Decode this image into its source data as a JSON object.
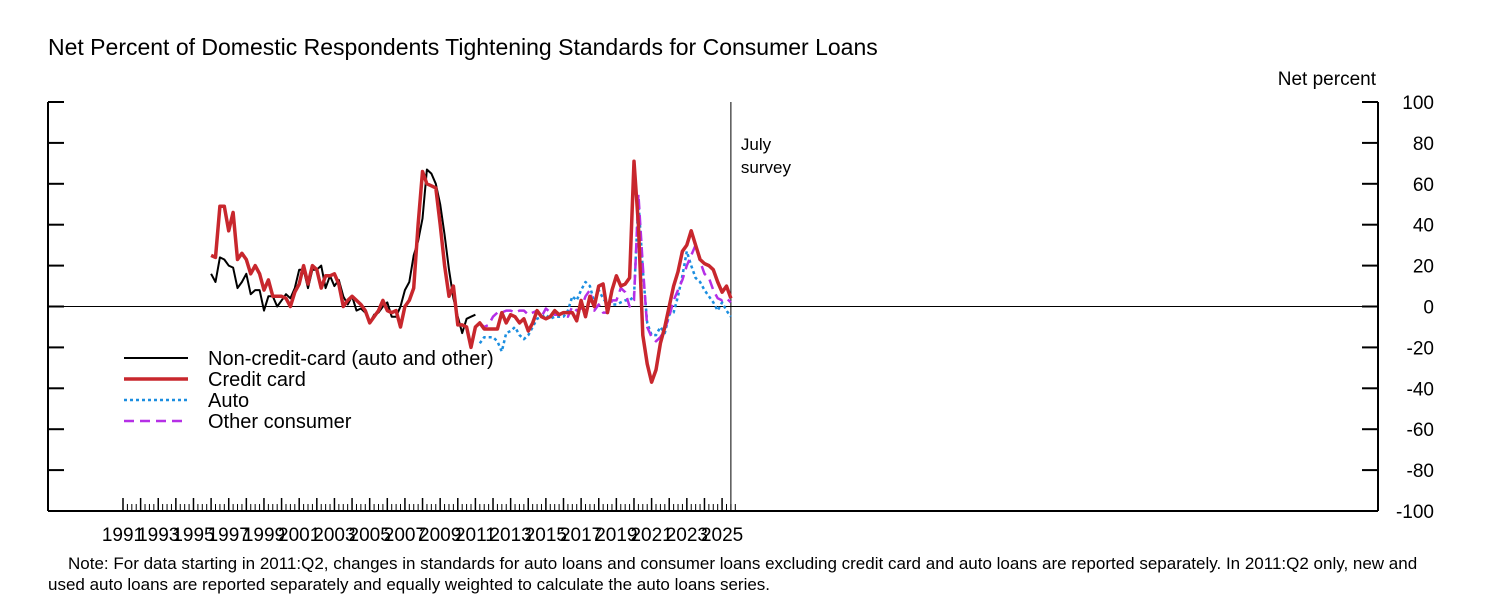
{
  "chart_data": {
    "type": "line",
    "title": "Net Percent of Domestic Respondents Tightening Standards for Consumer Loans",
    "ylabel": "Net percent",
    "xlabel": "",
    "xlim": [
      1989.5,
      2026.5
    ],
    "ylim": [
      -100,
      100
    ],
    "x_ticks": [
      "1991",
      "1993",
      "1995",
      "1997",
      "1999",
      "2001",
      "2003",
      "2005",
      "2007",
      "2009",
      "2011",
      "2013",
      "2015",
      "2017",
      "2019",
      "2021",
      "2023",
      "2025"
    ],
    "y_ticks": [
      "100",
      "80",
      "60",
      "40",
      "20",
      "0",
      "-20",
      "-40",
      "-60",
      "-80",
      "-100"
    ],
    "grid": false,
    "legend_position": "lower-left",
    "annotation": "July\nsurvey",
    "annotation_x": 2025.5,
    "series": [
      {
        "name": "Non-credit-card (auto and other)",
        "color": "#000000",
        "style": "solid",
        "x": [
          1996.0,
          1996.25,
          1996.5,
          1996.75,
          1997.0,
          1997.25,
          1997.5,
          1997.75,
          1998.0,
          1998.25,
          1998.5,
          1998.75,
          1999.0,
          1999.25,
          1999.5,
          1999.75,
          2000.0,
          2000.25,
          2000.5,
          2000.75,
          2001.0,
          2001.25,
          2001.5,
          2001.75,
          2002.0,
          2002.25,
          2002.5,
          2002.75,
          2003.0,
          2003.25,
          2003.5,
          2003.75,
          2004.0,
          2004.25,
          2004.5,
          2004.75,
          2005.0,
          2005.25,
          2005.5,
          2005.75,
          2006.0,
          2006.25,
          2006.5,
          2006.75,
          2007.0,
          2007.25,
          2007.5,
          2007.75,
          2008.0,
          2008.25,
          2008.5,
          2008.75,
          2009.0,
          2009.25,
          2009.5,
          2009.75,
          2010.0,
          2010.25,
          2010.5,
          2010.75,
          2011.0
        ],
        "y": [
          16,
          12,
          24,
          23,
          20,
          19,
          9,
          12,
          16,
          6,
          8,
          8,
          -2,
          5,
          5,
          0,
          3,
          6,
          4,
          9,
          18,
          18,
          9,
          18,
          18,
          20,
          9,
          15,
          10,
          13,
          5,
          1,
          5,
          -2,
          -1,
          -3,
          -8,
          -4,
          -3,
          0,
          2,
          -5,
          -5,
          0,
          8,
          12,
          25,
          32,
          43,
          67,
          65,
          60,
          50,
          35,
          18,
          4,
          -5,
          -13,
          -6,
          -5,
          -4
        ]
      },
      {
        "name": "Credit card",
        "color": "#c8272d",
        "style": "solid",
        "x": [
          1996.0,
          1996.25,
          1996.5,
          1996.75,
          1997.0,
          1997.25,
          1997.5,
          1997.75,
          1998.0,
          1998.25,
          1998.5,
          1998.75,
          1999.0,
          1999.25,
          1999.5,
          1999.75,
          2000.0,
          2000.25,
          2000.5,
          2000.75,
          2001.0,
          2001.25,
          2001.5,
          2001.75,
          2002.0,
          2002.25,
          2002.5,
          2002.75,
          2003.0,
          2003.25,
          2003.5,
          2003.75,
          2004.0,
          2004.25,
          2004.5,
          2004.75,
          2005.0,
          2005.25,
          2005.5,
          2005.75,
          2006.0,
          2006.25,
          2006.5,
          2006.75,
          2007.0,
          2007.25,
          2007.5,
          2007.75,
          2008.0,
          2008.25,
          2008.5,
          2008.75,
          2009.0,
          2009.25,
          2009.5,
          2009.75,
          2010.0,
          2010.25,
          2010.5,
          2010.75,
          2011.0,
          2011.25,
          2011.5,
          2011.75,
          2012.0,
          2012.25,
          2012.5,
          2012.75,
          2013.0,
          2013.25,
          2013.5,
          2013.75,
          2014.0,
          2014.25,
          2014.5,
          2014.75,
          2015.0,
          2015.25,
          2015.5,
          2015.75,
          2016.0,
          2016.25,
          2016.5,
          2016.75,
          2017.0,
          2017.25,
          2017.5,
          2017.75,
          2018.0,
          2018.25,
          2018.5,
          2018.75,
          2019.0,
          2019.25,
          2019.5,
          2019.75,
          2020.0,
          2020.25,
          2020.5,
          2020.75,
          2021.0,
          2021.25,
          2021.5,
          2021.75,
          2022.0,
          2022.25,
          2022.5,
          2022.75,
          2023.0,
          2023.25,
          2023.5,
          2023.75,
          2024.0,
          2024.25,
          2024.5,
          2024.75,
          2025.0,
          2025.25,
          2025.5
        ],
        "y": [
          25,
          24,
          49,
          49,
          37,
          46,
          23,
          26,
          23,
          16,
          20,
          16,
          8,
          13,
          5,
          5,
          5,
          4,
          0,
          7,
          11,
          20,
          11,
          20,
          18,
          9,
          15,
          15,
          16,
          11,
          0,
          3,
          5,
          3,
          1,
          -2,
          -8,
          -5,
          -2,
          3,
          -2,
          -3,
          -2,
          -10,
          0,
          3,
          9,
          40,
          66,
          60,
          59,
          58,
          40,
          20,
          5,
          10,
          -9,
          -9,
          -10,
          -20,
          -10,
          -8,
          -11,
          -11,
          -11,
          -11,
          -3,
          -8,
          -4,
          -5,
          -8,
          -6,
          -12,
          -8,
          -2,
          -5,
          -6,
          -5,
          -2,
          -4,
          -3,
          -3,
          -3,
          -7,
          3,
          -5,
          5,
          0,
          10,
          11,
          -3,
          8,
          15,
          10,
          11,
          14,
          71,
          40,
          -14,
          -28,
          -37,
          -31,
          -18,
          -10,
          0,
          10,
          17,
          27,
          30,
          37,
          30,
          23,
          21,
          20,
          18,
          12,
          7,
          10,
          4
        ]
      },
      {
        "name": "Auto",
        "color": "#1b8ee0",
        "style": "dotted",
        "x": [
          2011.25,
          2011.5,
          2011.75,
          2012.0,
          2012.25,
          2012.5,
          2012.75,
          2013.0,
          2013.25,
          2013.5,
          2013.75,
          2014.0,
          2014.25,
          2014.5,
          2014.75,
          2015.0,
          2015.25,
          2015.5,
          2015.75,
          2016.0,
          2016.25,
          2016.5,
          2016.75,
          2017.0,
          2017.25,
          2017.5,
          2017.75,
          2018.0,
          2018.25,
          2018.5,
          2018.75,
          2019.0,
          2019.25,
          2019.5,
          2019.75,
          2020.0,
          2020.25,
          2020.5,
          2020.75,
          2021.0,
          2021.25,
          2021.5,
          2021.75,
          2022.0,
          2022.25,
          2022.5,
          2022.75,
          2023.0,
          2023.25,
          2023.5,
          2023.75,
          2024.0,
          2024.25,
          2024.5,
          2024.75,
          2025.0,
          2025.25,
          2025.5
        ],
        "y": [
          -18,
          -15,
          -15,
          -15,
          -17,
          -22,
          -13,
          -12,
          -10,
          -14,
          -16,
          -14,
          -10,
          -6,
          -5,
          -4,
          -6,
          -5,
          -5,
          -5,
          -2,
          5,
          3,
          8,
          12,
          10,
          2,
          8,
          4,
          1,
          1,
          1,
          2,
          3,
          3,
          5,
          52,
          18,
          -8,
          -14,
          -14,
          -10,
          -13,
          -4,
          -3,
          5,
          15,
          27,
          20,
          14,
          12,
          8,
          5,
          2,
          -2,
          2,
          -2,
          -5
        ]
      },
      {
        "name": "Other consumer",
        "color": "#b52fe6",
        "style": "dashed",
        "x": [
          2011.25,
          2011.5,
          2011.75,
          2012.0,
          2012.25,
          2012.5,
          2012.75,
          2013.0,
          2013.25,
          2013.5,
          2013.75,
          2014.0,
          2014.25,
          2014.5,
          2014.75,
          2015.0,
          2015.25,
          2015.5,
          2015.75,
          2016.0,
          2016.25,
          2016.5,
          2016.75,
          2017.0,
          2017.25,
          2017.5,
          2017.75,
          2018.0,
          2018.25,
          2018.5,
          2018.75,
          2019.0,
          2019.25,
          2019.5,
          2019.75,
          2020.0,
          2020.25,
          2020.5,
          2020.75,
          2021.0,
          2021.25,
          2021.5,
          2021.75,
          2022.0,
          2022.25,
          2022.5,
          2022.75,
          2023.0,
          2023.25,
          2023.5,
          2023.75,
          2024.0,
          2024.25,
          2024.5,
          2024.75,
          2025.0,
          2025.25,
          2025.5
        ],
        "y": [
          -8,
          -10,
          -9,
          -5,
          -3,
          -3,
          -2,
          -2,
          -3,
          -2,
          -2,
          -4,
          -3,
          -2,
          -5,
          -1,
          -3,
          -4,
          -4,
          -3,
          -5,
          0,
          -2,
          -1,
          5,
          8,
          -2,
          1,
          -3,
          -3,
          3,
          3,
          9,
          7,
          0,
          3,
          55,
          20,
          -10,
          -15,
          -17,
          -15,
          -11,
          -5,
          3,
          8,
          13,
          20,
          25,
          30,
          22,
          16,
          14,
          8,
          4,
          3,
          4,
          2
        ]
      }
    ]
  },
  "note": "Note: For data starting in 2011:Q2, changes in standards for auto loans and consumer loans excluding credit card and auto loans are reported separately. In 2011:Q2 only, new and used auto loans are reported separately and equally weighted to calculate the auto loans series."
}
